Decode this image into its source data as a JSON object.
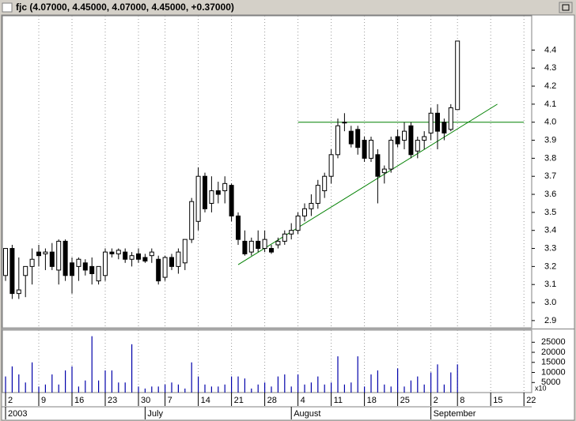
{
  "chart_data": {
    "type": "candlestick",
    "title": "fjc (4.07000, 4.45000, 4.07000, 4.45000, +0.37000)",
    "x": [
      "2003-06-02",
      "2003-06-03",
      "2003-06-04",
      "2003-06-05",
      "2003-06-06",
      "2003-06-09",
      "2003-06-10",
      "2003-06-11",
      "2003-06-12",
      "2003-06-13",
      "2003-06-16",
      "2003-06-17",
      "2003-06-18",
      "2003-06-19",
      "2003-06-20",
      "2003-06-23",
      "2003-06-24",
      "2003-06-25",
      "2003-06-26",
      "2003-06-27",
      "2003-06-30",
      "2003-07-01",
      "2003-07-02",
      "2003-07-03",
      "2003-07-07",
      "2003-07-08",
      "2003-07-09",
      "2003-07-10",
      "2003-07-11",
      "2003-07-14",
      "2003-07-15",
      "2003-07-16",
      "2003-07-17",
      "2003-07-18",
      "2003-07-21",
      "2003-07-22",
      "2003-07-23",
      "2003-07-24",
      "2003-07-25",
      "2003-07-28",
      "2003-07-29",
      "2003-07-30",
      "2003-07-31",
      "2003-08-01",
      "2003-08-04",
      "2003-08-05",
      "2003-08-06",
      "2003-08-07",
      "2003-08-08",
      "2003-08-11",
      "2003-08-12",
      "2003-08-13",
      "2003-08-14",
      "2003-08-15",
      "2003-08-18",
      "2003-08-19",
      "2003-08-20",
      "2003-08-21",
      "2003-08-22",
      "2003-08-25",
      "2003-08-26",
      "2003-08-27",
      "2003-08-28",
      "2003-08-29",
      "2003-09-02",
      "2003-09-03",
      "2003-09-04",
      "2003-09-05",
      "2003-09-08"
    ],
    "open": [
      3.15,
      3.3,
      3.05,
      3.15,
      3.2,
      3.28,
      3.27,
      3.28,
      3.18,
      3.34,
      3.22,
      3.2,
      3.22,
      3.2,
      3.12,
      3.15,
      3.28,
      3.27,
      3.28,
      3.24,
      3.27,
      3.25,
      3.26,
      3.24,
      3.14,
      3.25,
      3.2,
      3.22,
      3.35,
      3.45,
      3.7,
      3.55,
      3.62,
      3.62,
      3.65,
      3.48,
      3.34,
      3.28,
      3.34,
      3.3,
      3.3,
      3.32,
      3.34,
      3.38,
      3.4,
      3.48,
      3.52,
      3.55,
      3.62,
      3.7,
      3.82,
      4.0,
      3.95,
      3.96,
      3.9,
      3.8,
      3.82,
      3.72,
      3.74,
      3.92,
      3.9,
      3.98,
      3.84,
      3.9,
      3.94,
      4.05,
      4.0,
      3.96,
      4.07
    ],
    "high": [
      3.3,
      3.32,
      3.25,
      3.2,
      3.3,
      3.32,
      3.3,
      3.33,
      3.35,
      3.35,
      3.25,
      3.25,
      3.24,
      3.25,
      3.2,
      3.3,
      3.3,
      3.3,
      3.3,
      3.28,
      3.3,
      3.27,
      3.3,
      3.26,
      3.26,
      3.27,
      3.3,
      3.35,
      3.58,
      3.75,
      3.72,
      3.7,
      3.67,
      3.7,
      3.66,
      3.5,
      3.4,
      3.36,
      3.4,
      3.4,
      3.32,
      3.36,
      3.4,
      3.44,
      3.5,
      3.55,
      3.6,
      3.68,
      3.72,
      3.85,
      4.02,
      4.05,
      3.98,
      3.98,
      3.92,
      3.92,
      3.85,
      3.76,
      3.92,
      3.96,
      4.0,
      4.0,
      3.92,
      3.95,
      4.08,
      4.1,
      4.02,
      4.1,
      4.45
    ],
    "low": [
      3.12,
      3.02,
      3.02,
      3.03,
      3.1,
      3.2,
      3.18,
      3.18,
      3.1,
      3.12,
      3.05,
      3.12,
      3.15,
      3.1,
      3.1,
      3.12,
      3.25,
      3.24,
      3.22,
      3.2,
      3.22,
      3.22,
      3.22,
      3.1,
      3.12,
      3.18,
      3.16,
      3.18,
      3.33,
      3.4,
      3.5,
      3.5,
      3.55,
      3.55,
      3.45,
      3.32,
      3.26,
      3.26,
      3.28,
      3.28,
      3.27,
      3.3,
      3.32,
      3.35,
      3.38,
      3.45,
      3.48,
      3.52,
      3.58,
      3.66,
      3.8,
      3.95,
      3.86,
      3.82,
      3.78,
      3.78,
      3.55,
      3.66,
      3.72,
      3.86,
      3.85,
      3.8,
      3.8,
      3.85,
      3.9,
      3.85,
      3.9,
      3.95,
      4.07
    ],
    "close": [
      3.3,
      3.05,
      3.07,
      3.2,
      3.24,
      3.26,
      3.28,
      3.2,
      3.34,
      3.15,
      3.15,
      3.24,
      3.18,
      3.16,
      3.2,
      3.28,
      3.27,
      3.29,
      3.24,
      3.26,
      3.24,
      3.23,
      3.28,
      3.12,
      3.25,
      3.2,
      3.28,
      3.35,
      3.56,
      3.7,
      3.52,
      3.62,
      3.6,
      3.66,
      3.48,
      3.35,
      3.27,
      3.34,
      3.3,
      3.35,
      3.28,
      3.34,
      3.38,
      3.4,
      3.48,
      3.52,
      3.55,
      3.65,
      3.7,
      3.82,
      3.98,
      4.0,
      3.88,
      3.86,
      3.8,
      3.9,
      3.7,
      3.74,
      3.9,
      3.88,
      3.95,
      3.82,
      3.9,
      3.92,
      4.05,
      3.95,
      3.94,
      4.08,
      4.45
    ],
    "volume": [
      8000,
      13000,
      9000,
      5000,
      15000,
      3000,
      4000,
      9000,
      4000,
      11000,
      13000,
      3000,
      6000,
      28000,
      6000,
      11000,
      11000,
      5000,
      5000,
      24000,
      3000,
      2000,
      3000,
      3000,
      4000,
      5000,
      4000,
      2000,
      15000,
      8000,
      4000,
      3000,
      3000,
      4000,
      8000,
      8000,
      7000,
      2000,
      4000,
      5000,
      3000,
      8000,
      9000,
      3000,
      9000,
      4000,
      5000,
      8000,
      4000,
      5000,
      18000,
      4000,
      5000,
      18000,
      3000,
      9000,
      11000,
      4000,
      3000,
      12000,
      3000,
      6000,
      8000,
      4000,
      10000,
      14000,
      4000,
      10000,
      14000
    ],
    "up_color": "#ffffff",
    "down_color": "#000000",
    "volume_color": "#0000aa",
    "ylim": [
      2.86,
      4.59
    ],
    "yticks": [
      2.9,
      {
        "value": 3,
        "label": "3.0"
      },
      3.1,
      3.2,
      3.3,
      3.4,
      3.5,
      3.6,
      3.7,
      3.8,
      3.9,
      {
        "value": 4,
        "label": "4.0"
      },
      4.1,
      4.2,
      4.3,
      4.4
    ],
    "volume_ylim": [
      0,
      31000
    ],
    "volume_yticks": [
      5000,
      10000,
      15000,
      20000,
      25000
    ],
    "volume_multiplier_label": "x10",
    "xticks": [
      {
        "value": "2003-06-02",
        "label": "2"
      },
      {
        "value": "2003-06-09",
        "label": "9"
      },
      {
        "value": "2003-06-16",
        "label": "16"
      },
      {
        "value": "2003-06-23",
        "label": "23"
      },
      {
        "value": "2003-06-30",
        "label": "30"
      },
      {
        "value": "2003-07-07",
        "label": "7"
      },
      {
        "value": "2003-07-14",
        "label": "14"
      },
      {
        "value": "2003-07-21",
        "label": "21"
      },
      {
        "value": "2003-07-28",
        "label": "28"
      },
      {
        "value": "2003-08-04",
        "label": "4"
      },
      {
        "value": "2003-08-11",
        "label": "11"
      },
      {
        "value": "2003-08-18",
        "label": "18"
      },
      {
        "value": "2003-08-25",
        "label": "25"
      },
      {
        "value": "2003-09-02",
        "label": "2"
      },
      {
        "value": "2003-09-08",
        "label": "8"
      },
      {
        "value": "2003-09-15",
        "label": "15"
      },
      {
        "value": "2003-09-22",
        "label": "22"
      }
    ],
    "month_labels": [
      {
        "value": "2003-06-02",
        "label": "2003"
      },
      {
        "value": "2003-07-01",
        "label": "July"
      },
      {
        "value": "2003-08-01",
        "label": "August"
      },
      {
        "value": "2003-09-02",
        "label": "September"
      }
    ],
    "trendlines": [
      {
        "color": "#008000",
        "x": [
          "2003-08-04",
          "2003-09-22"
        ],
        "y": [
          4.0,
          4.0
        ]
      },
      {
        "color": "#008000",
        "x": [
          "2003-07-22",
          "2003-09-16"
        ],
        "y": [
          3.21,
          4.1
        ]
      }
    ]
  }
}
